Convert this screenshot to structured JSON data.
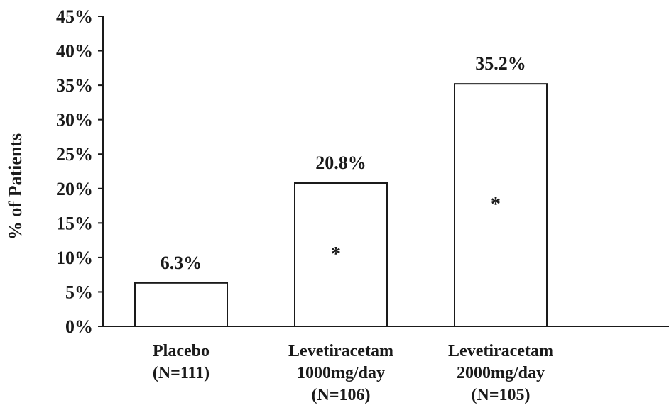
{
  "chart_data": {
    "type": "bar",
    "title": "",
    "xlabel": "",
    "ylabel": "% of Patients",
    "ylim": [
      0,
      45
    ],
    "y_ticks": [
      "0%",
      "5%",
      "10%",
      "15%",
      "20%",
      "25%",
      "30%",
      "35%",
      "40%",
      "45%"
    ],
    "y_tick_values": [
      0,
      5,
      10,
      15,
      20,
      25,
      30,
      35,
      40,
      45
    ],
    "grid": false,
    "categories": [
      [
        "Placebo",
        "(N=111)"
      ],
      [
        "Levetiracetam",
        "1000mg/day",
        "(N=106)"
      ],
      [
        "Levetiracetam",
        "2000mg/day",
        "(N=105)"
      ]
    ],
    "values": [
      6.3,
      20.8,
      35.2
    ],
    "data_labels": [
      "6.3%",
      "20.8%",
      "35.2%"
    ],
    "significance_marks": [
      "",
      "*",
      "*"
    ],
    "bar_fill": "#ffffff",
    "bar_stroke": "#1a1a1a"
  }
}
